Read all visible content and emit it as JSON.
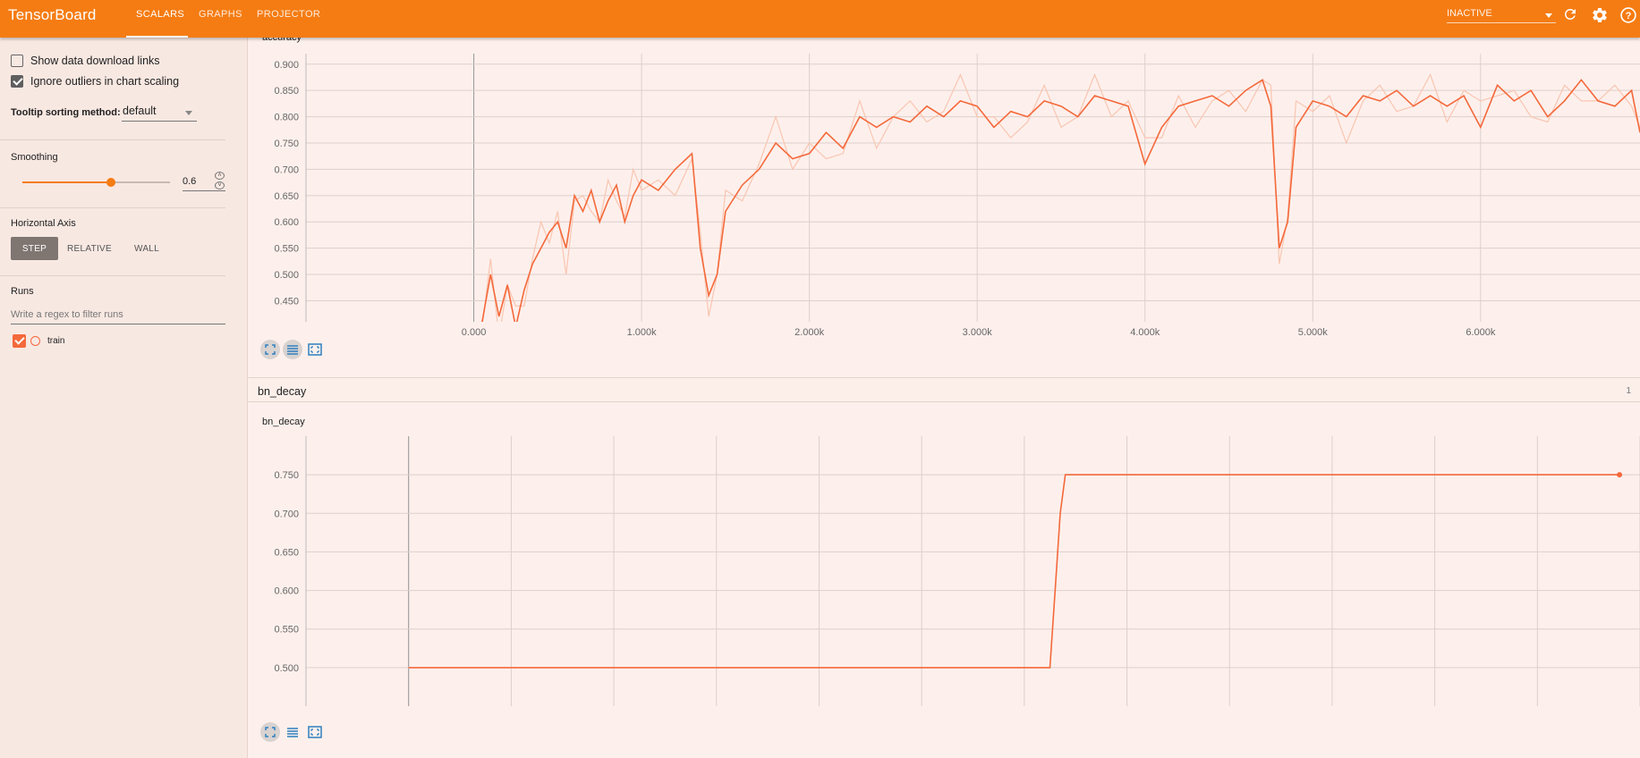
{
  "header": {
    "brand": "TensorBoard",
    "tabs": [
      "SCALARS",
      "GRAPHS",
      "PROJECTOR"
    ],
    "status_select": "INACTIVE",
    "icons": [
      "refresh-icon",
      "settings-icon",
      "help-icon"
    ]
  },
  "sidebar": {
    "show_download_links": "Show data download links",
    "ignore_outliers": "Ignore outliers in chart scaling",
    "tooltip_sorting_label": "Tooltip sorting method:",
    "tooltip_sorting_value": "default",
    "smoothing_label": "Smoothing",
    "smoothing_value": "0.6",
    "smoothing_fraction": 0.6,
    "horizontal_axis_label": "Horizontal Axis",
    "axis_options": [
      "STEP",
      "RELATIVE",
      "WALL"
    ],
    "axis_selected": "STEP",
    "runs_label": "Runs",
    "runs_filter_placeholder": "Write a regex to filter runs",
    "runs": [
      {
        "name": "train",
        "checked": true,
        "color": "#f4693b"
      }
    ]
  },
  "groups": [
    {
      "name": "bn_decay",
      "count": "1"
    }
  ],
  "colors": {
    "accent": "#f57c13",
    "series": "#f4693b",
    "series_raw": "#f9c5b1"
  },
  "chart_data": [
    {
      "type": "line",
      "title": "accuracy",
      "xlabel": "",
      "ylabel": "",
      "x_ticks": [
        "0.000",
        "1.000k",
        "2.000k",
        "3.000k",
        "4.000k",
        "5.000k",
        "6.000k"
      ],
      "y_ticks": [
        "0.450",
        "0.500",
        "0.550",
        "0.600",
        "0.650",
        "0.700",
        "0.750",
        "0.800",
        "0.850",
        "0.900"
      ],
      "xlim": [
        -1000,
        6950
      ],
      "ylim": [
        0.41,
        0.92
      ],
      "series": [
        {
          "name": "train",
          "x": [
            0,
            50,
            100,
            150,
            200,
            250,
            300,
            350,
            400,
            450,
            500,
            550,
            600,
            650,
            700,
            750,
            800,
            850,
            900,
            950,
            1000,
            1100,
            1200,
            1300,
            1350,
            1400,
            1450,
            1500,
            1600,
            1700,
            1800,
            1900,
            2000,
            2100,
            2200,
            2300,
            2400,
            2500,
            2600,
            2700,
            2800,
            2900,
            3000,
            3100,
            3200,
            3300,
            3400,
            3500,
            3600,
            3700,
            3800,
            3900,
            4000,
            4100,
            4200,
            4300,
            4400,
            4500,
            4600,
            4700,
            4750,
            4800,
            4850,
            4900,
            5000,
            5100,
            5200,
            5300,
            5400,
            5500,
            5600,
            5700,
            5800,
            5900,
            6000,
            6100,
            6200,
            6300,
            6400,
            6500,
            6600,
            6700,
            6800,
            6900,
            6950
          ],
          "y": [
            0.4,
            0.41,
            0.5,
            0.42,
            0.48,
            0.4,
            0.47,
            0.52,
            0.55,
            0.58,
            0.6,
            0.55,
            0.65,
            0.62,
            0.66,
            0.6,
            0.64,
            0.67,
            0.6,
            0.65,
            0.68,
            0.66,
            0.7,
            0.73,
            0.55,
            0.46,
            0.5,
            0.62,
            0.67,
            0.7,
            0.75,
            0.72,
            0.73,
            0.77,
            0.74,
            0.8,
            0.78,
            0.8,
            0.79,
            0.82,
            0.8,
            0.83,
            0.82,
            0.78,
            0.81,
            0.8,
            0.83,
            0.82,
            0.8,
            0.84,
            0.83,
            0.82,
            0.71,
            0.78,
            0.82,
            0.83,
            0.84,
            0.82,
            0.85,
            0.87,
            0.82,
            0.55,
            0.6,
            0.78,
            0.83,
            0.82,
            0.8,
            0.84,
            0.83,
            0.85,
            0.82,
            0.84,
            0.82,
            0.84,
            0.78,
            0.86,
            0.83,
            0.85,
            0.8,
            0.83,
            0.87,
            0.83,
            0.82,
            0.85,
            0.77
          ]
        }
      ]
    },
    {
      "type": "line",
      "title": "bn_decay",
      "xlabel": "",
      "ylabel": "",
      "y_ticks": [
        "0.500",
        "0.550",
        "0.600",
        "0.650",
        "0.700",
        "0.750"
      ],
      "xlim": [
        -1000,
        12000
      ],
      "ylim": [
        0.45,
        0.8
      ],
      "series": [
        {
          "name": "train",
          "x": [
            0,
            6250,
            6300,
            6350,
            6400,
            11800
          ],
          "y": [
            0.5,
            0.5,
            0.6,
            0.7,
            0.75,
            0.75
          ]
        }
      ]
    }
  ]
}
